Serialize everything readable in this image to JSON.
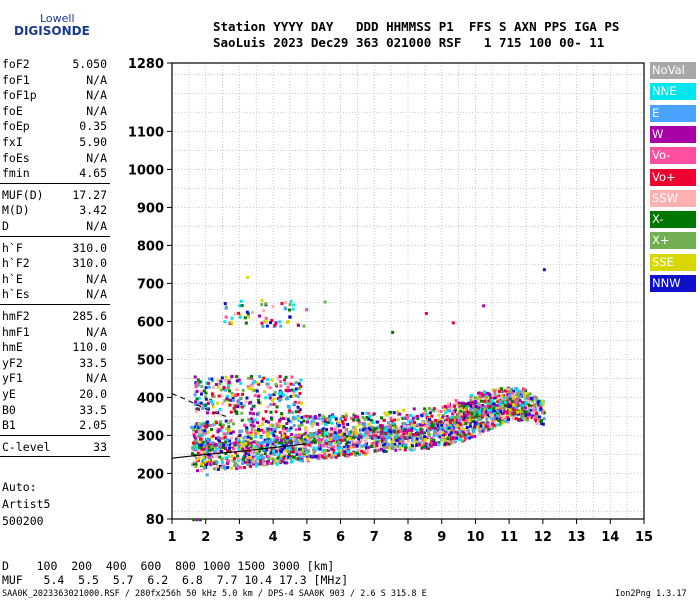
{
  "logo": {
    "line1": "Lowell",
    "line2": "DIGISONDE"
  },
  "header": {
    "labels": "Station YYYY DAY   DDD HHMMSS P1  FFS S AXN PPS IGA PS",
    "values": "SaoLuis 2023 Dec29 363 021000 RSF   1 715 100 00- 11"
  },
  "params": [
    {
      "group": 1,
      "name": "foF2",
      "value": "5.050"
    },
    {
      "group": 1,
      "name": "foF1",
      "value": "N/A"
    },
    {
      "group": 1,
      "name": "foF1p",
      "value": "N/A"
    },
    {
      "group": 1,
      "name": "foE",
      "value": "N/A"
    },
    {
      "group": 1,
      "name": "foEp",
      "value": "0.35"
    },
    {
      "group": 1,
      "name": "fxI",
      "value": "5.90"
    },
    {
      "group": 1,
      "name": "foEs",
      "value": "N/A"
    },
    {
      "group": 1,
      "name": "fmin",
      "value": "4.65"
    },
    {
      "group": 2,
      "name": "MUF(D)",
      "value": "17.27"
    },
    {
      "group": 2,
      "name": "M(D)",
      "value": "3.42"
    },
    {
      "group": 2,
      "name": "D",
      "value": "N/A"
    },
    {
      "group": 3,
      "name": "h`F",
      "value": "310.0"
    },
    {
      "group": 3,
      "name": "h`F2",
      "value": "310.0"
    },
    {
      "group": 3,
      "name": "h`E",
      "value": "N/A"
    },
    {
      "group": 3,
      "name": "h`Es",
      "value": "N/A"
    },
    {
      "group": 4,
      "name": "hmF2",
      "value": "285.6"
    },
    {
      "group": 4,
      "name": "hmF1",
      "value": "N/A"
    },
    {
      "group": 4,
      "name": "hmE",
      "value": "110.0"
    },
    {
      "group": 4,
      "name": "yF2",
      "value": "33.5"
    },
    {
      "group": 4,
      "name": "yF1",
      "value": "N/A"
    },
    {
      "group": 4,
      "name": "yE",
      "value": "20.0"
    },
    {
      "group": 4,
      "name": "B0",
      "value": "33.5"
    },
    {
      "group": 4,
      "name": "B1",
      "value": "2.05"
    },
    {
      "group": 5,
      "name": "C-level",
      "value": "33"
    }
  ],
  "auto": [
    "Auto:",
    "Artist5",
    "500200"
  ],
  "legend": [
    {
      "label": "NoVal",
      "color": "#a8a8a8"
    },
    {
      "label": "NNE",
      "color": "#00e5ee"
    },
    {
      "label": "E",
      "color": "#4aa3ff"
    },
    {
      "label": "W",
      "color": "#a800a8"
    },
    {
      "label": "Vo-",
      "color": "#ff50a0"
    },
    {
      "label": "Vo+",
      "color": "#ee0030"
    },
    {
      "label": "SSW",
      "color": "#ffb0b0"
    },
    {
      "label": "X-",
      "color": "#007800"
    },
    {
      "label": "X+",
      "color": "#70b050"
    },
    {
      "label": "SSE",
      "color": "#d8d800"
    },
    {
      "label": "NNW",
      "color": "#1010c8"
    }
  ],
  "bottom": {
    "d_row": "D    100  200  400  600  800 1000 1500 3000 [km]",
    "muf_row": "MUF   5.4  5.5  5.7  6.2  6.8  7.7 10.4 17.3 [MHz]"
  },
  "footer": {
    "left": "SAA0K_2023363021000.RSF / 280fx256h 50 kHz 5.0 km / DPS-4 SAA0K 903 / 2.6 S 315.8 E",
    "right": "Ion2Png 1.3.17"
  },
  "chart_data": {
    "type": "scatter",
    "x_ticks": [
      1,
      2,
      3,
      4,
      5,
      6,
      7,
      8,
      9,
      10,
      11,
      12,
      13,
      14,
      15
    ],
    "y_ticks": [
      80,
      200,
      300,
      400,
      500,
      600,
      700,
      800,
      900,
      1000,
      1100,
      1280
    ],
    "xlim": [
      1,
      15
    ],
    "ylim": [
      80,
      1280
    ],
    "grid": true,
    "legend_position": "right",
    "traces": [
      {
        "name": "o-trace",
        "points": [
          [
            1.6,
            245
          ],
          [
            2.2,
            248
          ],
          [
            3,
            252
          ],
          [
            3.5,
            258
          ],
          [
            4,
            262
          ],
          [
            4.5,
            268
          ],
          [
            5,
            272
          ],
          [
            5.5,
            278
          ],
          [
            6,
            282
          ],
          [
            6.5,
            286
          ],
          [
            7,
            292
          ],
          [
            7.5,
            298
          ],
          [
            8,
            300
          ],
          [
            8.5,
            304
          ],
          [
            9,
            310
          ],
          [
            9.5,
            320
          ],
          [
            10,
            340
          ],
          [
            10.5,
            360
          ],
          [
            11,
            375
          ],
          [
            11.5,
            380
          ],
          [
            12,
            365
          ]
        ]
      },
      {
        "name": "x-trace",
        "points": [
          [
            1.6,
            300
          ],
          [
            2,
            305
          ],
          [
            3,
            310
          ],
          [
            4,
            318
          ],
          [
            5,
            322
          ],
          [
            6,
            325
          ],
          [
            7,
            330
          ],
          [
            8,
            338
          ],
          [
            9,
            345
          ],
          [
            9.5,
            365
          ],
          [
            10,
            380
          ],
          [
            10.5,
            390
          ],
          [
            11,
            395
          ],
          [
            11.5,
            390
          ]
        ]
      }
    ],
    "clouds": [
      {
        "fmin": 1.6,
        "fmax": 4.8,
        "hmin": 360,
        "hmax": 460,
        "count": 260
      },
      {
        "fmin": 2.5,
        "fmax": 5.0,
        "hmin": 590,
        "hmax": 660,
        "count": 60
      }
    ],
    "isolated_points": [
      [
        1.6,
        82
      ],
      [
        1.7,
        82
      ],
      [
        1.8,
        82
      ],
      [
        2.0,
        200
      ],
      [
        1.7,
        440
      ],
      [
        2.5,
        430
      ],
      [
        3.2,
        720
      ],
      [
        5.5,
        655
      ],
      [
        7.5,
        575
      ],
      [
        8.5,
        625
      ],
      [
        9.3,
        600
      ],
      [
        10.2,
        645
      ],
      [
        12,
        740
      ]
    ],
    "reference_curves": [
      {
        "style": "solid",
        "points": [
          [
            1,
            240
          ],
          [
            2,
            250
          ],
          [
            3,
            258
          ],
          [
            4,
            268
          ],
          [
            5,
            278
          ]
        ]
      },
      {
        "style": "dashed",
        "points": [
          [
            1,
            410
          ],
          [
            1.4,
            395
          ],
          [
            1.8,
            378
          ],
          [
            2.2,
            362
          ],
          [
            2.6,
            350
          ]
        ]
      }
    ]
  }
}
